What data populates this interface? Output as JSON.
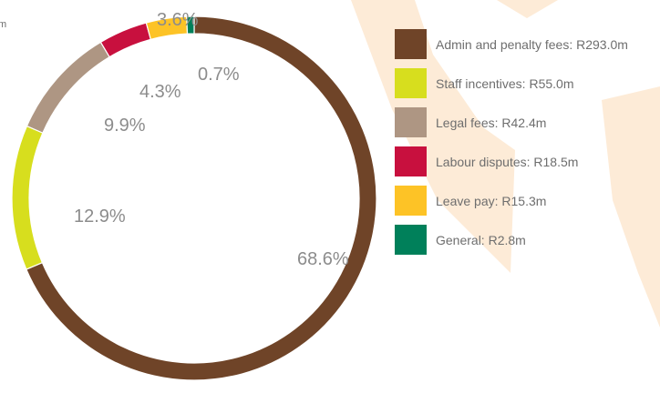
{
  "edge_fragment": "m",
  "chart_data": {
    "type": "pie",
    "variant": "donut",
    "title": "",
    "slices": [
      {
        "label": "Admin and penalty fees: R293.0m",
        "value": 293.0,
        "percent": 68.6,
        "percent_label": "68.6%",
        "color": "#6f4428"
      },
      {
        "label": "Staff incentives: R55.0m",
        "value": 55.0,
        "percent": 12.9,
        "percent_label": "12.9%",
        "color": "#d7de1e"
      },
      {
        "label": "Legal fees: R42.4m",
        "value": 42.4,
        "percent": 9.9,
        "percent_label": "9.9%",
        "color": "#ae9683"
      },
      {
        "label": "Labour disputes: R18.5m",
        "value": 18.5,
        "percent": 4.3,
        "percent_label": "4.3%",
        "color": "#c8103e"
      },
      {
        "label": "Leave pay: R15.3m",
        "value": 15.3,
        "percent": 3.6,
        "percent_label": "3.6%",
        "color": "#fdc326"
      },
      {
        "label": "General: R2.8m",
        "value": 2.8,
        "percent": 0.7,
        "percent_label": "0.7%",
        "color": "#00805a"
      }
    ],
    "legend_position": "right",
    "background_motif_color": "#fdebd7"
  }
}
